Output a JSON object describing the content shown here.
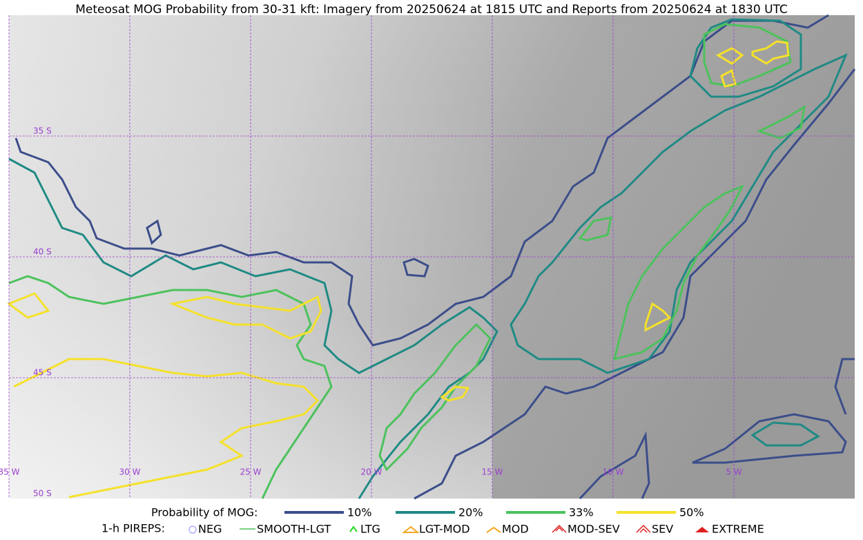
{
  "title": "Meteosat MOG Probability from 30-31 kft: Imagery from 20250624 at 1815 UTC and Reports from 20250624 at 1830 UTC",
  "grid_labels": {
    "lat": [
      "35 S",
      "40 S",
      "45 S",
      "50 S"
    ],
    "lon": [
      "35 W",
      "30 W",
      "25 W",
      "20 W",
      "15 W",
      "10 W",
      "5 W"
    ]
  },
  "legend": {
    "probability": {
      "label": "Probability of MOG:",
      "items": [
        "10%",
        "20%",
        "33%",
        "50%"
      ]
    },
    "pireps": {
      "label": "1-h PIREPS:",
      "items": [
        "NEG",
        "SMOOTH-LGT",
        "LTG",
        "LGT-MOD",
        "MOD",
        "MOD-SEV",
        "SEV",
        "EXTREME"
      ]
    }
  }
}
